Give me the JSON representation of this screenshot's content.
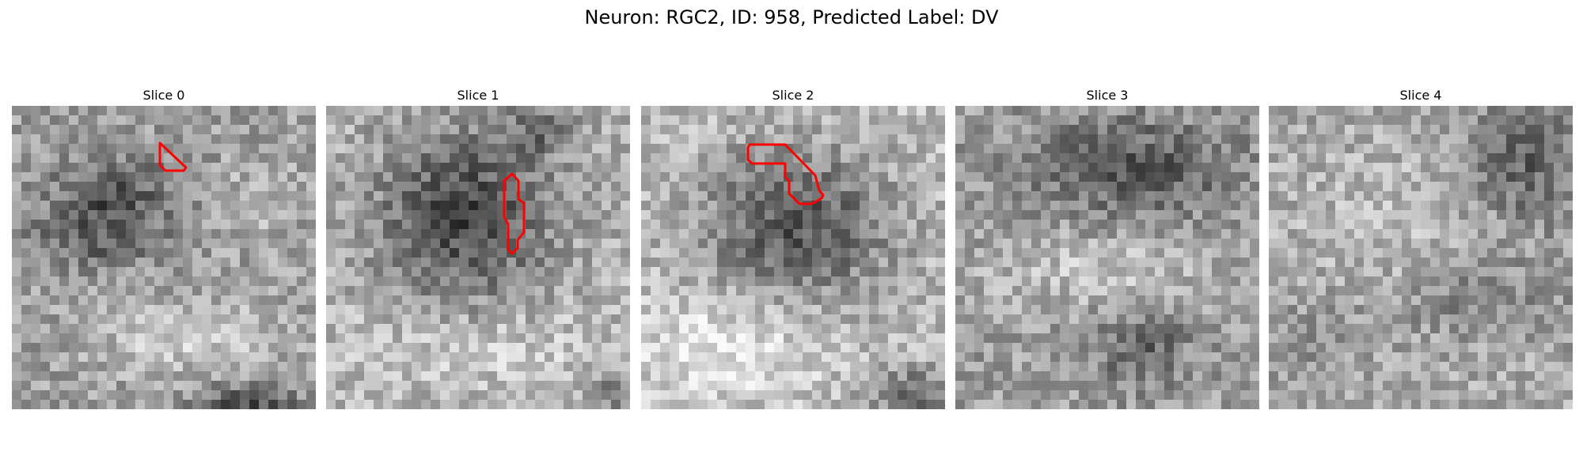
{
  "figure": {
    "title": "Neuron: RGC2, ID: 958, Predicted Label: DV"
  },
  "roi_color": "#ff0000",
  "colormap": "gray",
  "panels": [
    {
      "label": "Slice 0",
      "seed": 11,
      "variant": "s0",
      "has_roi": true
    },
    {
      "label": "Slice 1",
      "seed": 23,
      "variant": "s1",
      "has_roi": true
    },
    {
      "label": "Slice 2",
      "seed": 37,
      "variant": "s2",
      "has_roi": true
    },
    {
      "label": "Slice 3",
      "seed": 41,
      "variant": "s3",
      "has_roi": false
    },
    {
      "label": "Slice 4",
      "seed": 53,
      "variant": "s4",
      "has_roi": false
    }
  ]
}
